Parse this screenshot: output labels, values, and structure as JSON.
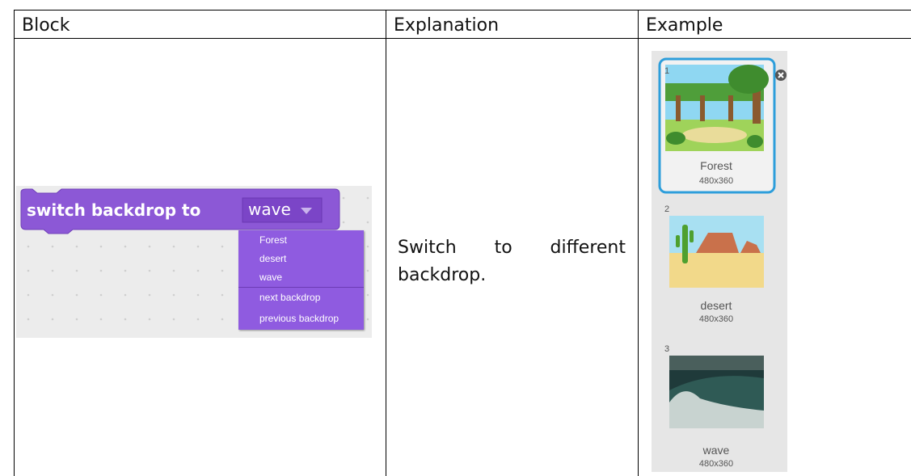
{
  "table": {
    "headers": [
      "Block",
      "Explanation",
      "Example"
    ],
    "block": {
      "label": "switch backdrop to",
      "selected": "wave",
      "menu": [
        "Forest",
        "desert",
        "wave",
        "next backdrop",
        "previous backdrop"
      ]
    },
    "explanation": "Switch to different backdrop."
  },
  "example": {
    "backdrops": [
      {
        "number": 1,
        "name": "Forest",
        "size": "480x360"
      },
      {
        "number": 2,
        "name": "desert",
        "size": "480x360"
      },
      {
        "number": 3,
        "name": "wave",
        "size": "480x360"
      }
    ]
  }
}
